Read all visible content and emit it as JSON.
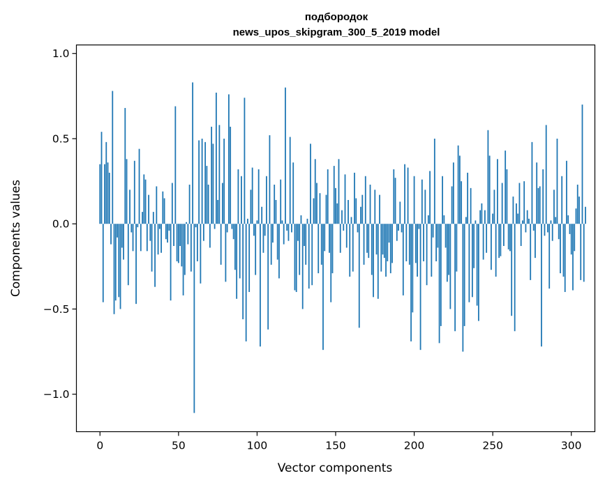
{
  "chart_data": {
    "type": "bar",
    "title": "подбородок",
    "subtitle": "news_upos_skipgram_300_5_2019 model",
    "xlabel": "Vector components",
    "ylabel": "Components values",
    "xlim": [
      -15,
      315
    ],
    "ylim": [
      -1.22,
      1.05
    ],
    "xticks": [
      0,
      50,
      100,
      150,
      200,
      250,
      300
    ],
    "yticks": [
      1.0,
      0.5,
      0.0,
      -0.5,
      -1.0
    ],
    "xtick_labels": [
      "0",
      "50",
      "100",
      "150",
      "200",
      "250",
      "300"
    ],
    "ytick_labels": [
      "1.0",
      "0.5",
      "0.0",
      "−0.5",
      "−1.0"
    ],
    "bar_color": "#1f77b4",
    "grid": false,
    "values": [
      0.35,
      0.54,
      -0.46,
      0.35,
      0.48,
      0.36,
      0.3,
      -0.12,
      0.78,
      -0.53,
      -0.45,
      -0.08,
      -0.43,
      -0.5,
      -0.14,
      -0.21,
      0.68,
      0.38,
      -0.36,
      0.2,
      -0.05,
      -0.16,
      0.37,
      -0.47,
      -0.02,
      0.44,
      -0.16,
      0.07,
      0.29,
      0.26,
      -0.16,
      0.17,
      -0.1,
      -0.28,
      0.07,
      -0.37,
      0.22,
      -0.18,
      -0.03,
      -0.17,
      0.19,
      0.15,
      -0.09,
      -0.11,
      -0.04,
      -0.45,
      0.24,
      -0.13,
      0.69,
      -0.22,
      -0.23,
      -0.13,
      -0.25,
      -0.42,
      -0.3,
      0.01,
      -0.12,
      0.23,
      -0.28,
      0.83,
      -1.11,
      -0.02,
      -0.22,
      0.49,
      -0.35,
      0.5,
      -0.1,
      0.48,
      0.34,
      0.23,
      -0.14,
      0.57,
      0.47,
      -0.03,
      0.77,
      0.14,
      0.58,
      -0.24,
      0.24,
      0.5,
      -0.34,
      -0.05,
      0.76,
      0.57,
      -0.03,
      -0.09,
      -0.27,
      -0.44,
      0.32,
      -0.32,
      0.28,
      -0.56,
      0.74,
      -0.69,
      0.03,
      -0.4,
      0.2,
      0.33,
      -0.07,
      -0.3,
      0.02,
      0.32,
      -0.72,
      0.1,
      -0.17,
      -0.07,
      0.28,
      -0.62,
      0.52,
      -0.24,
      -0.11,
      0.23,
      0.14,
      -0.21,
      -0.32,
      0.26,
      0.02,
      -0.12,
      0.8,
      -0.04,
      -0.1,
      0.51,
      -0.05,
      0.36,
      -0.39,
      -0.4,
      -0.1,
      -0.3,
      0.05,
      -0.5,
      -0.13,
      -0.24,
      0.03,
      -0.38,
      0.47,
      -0.36,
      0.15,
      0.38,
      0.24,
      -0.29,
      0.18,
      -0.24,
      -0.74,
      -0.16,
      0.17,
      0.32,
      -0.17,
      -0.46,
      -0.29,
      0.34,
      0.21,
      0.12,
      0.38,
      -0.17,
      0.08,
      -0.04,
      0.29,
      -0.14,
      0.14,
      -0.31,
      0.04,
      -0.28,
      0.3,
      0.15,
      -0.05,
      -0.61,
      0.1,
      0.17,
      -0.24,
      0.28,
      -0.17,
      -0.2,
      0.23,
      -0.3,
      -0.43,
      0.2,
      -0.18,
      -0.44,
      0.17,
      -0.28,
      -0.18,
      -0.2,
      -0.31,
      -0.22,
      -0.11,
      -0.29,
      -0.23,
      0.32,
      0.27,
      -0.1,
      -0.04,
      0.13,
      -0.05,
      -0.42,
      0.35,
      -0.22,
      0.33,
      -0.24,
      -0.69,
      -0.52,
      0.28,
      -0.23,
      -0.31,
      -0.03,
      -0.74,
      0.26,
      -0.22,
      0.2,
      -0.36,
      0.05,
      0.31,
      -0.31,
      -0.08,
      0.5,
      -0.22,
      -0.14,
      -0.7,
      -0.6,
      0.28,
      0.05,
      -0.14,
      -0.34,
      -0.3,
      -0.5,
      0.22,
      0.36,
      -0.63,
      -0.28,
      0.46,
      0.4,
      0.25,
      -0.75,
      -0.6,
      0.04,
      0.3,
      -0.46,
      0.21,
      -0.43,
      -0.26,
      0.02,
      -0.48,
      -0.57,
      0.08,
      0.12,
      -0.21,
      0.08,
      -0.17,
      0.55,
      0.4,
      -0.27,
      0.06,
      0.2,
      -0.31,
      0.38,
      -0.2,
      -0.19,
      0.24,
      -0.13,
      0.43,
      0.32,
      -0.15,
      -0.16,
      -0.54,
      0.16,
      -0.63,
      0.12,
      0.06,
      0.24,
      -0.13,
      0.02,
      0.25,
      -0.05,
      0.08,
      0.03,
      -0.33,
      0.48,
      -0.04,
      -0.2,
      0.36,
      0.21,
      0.22,
      -0.72,
      0.32,
      -0.07,
      0.58,
      -0.05,
      -0.38,
      0.02,
      -0.1,
      0.2,
      0.04,
      0.5,
      -0.09,
      -0.29,
      0.28,
      -0.31,
      -0.4,
      0.37,
      0.05,
      -0.06,
      -0.18,
      -0.39,
      -0.16,
      0.09,
      0.23,
      0.16,
      -0.33,
      0.7,
      -0.34,
      0.1
    ]
  }
}
